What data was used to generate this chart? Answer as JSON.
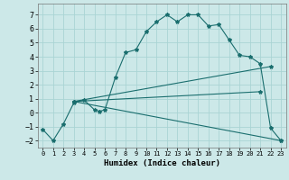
{
  "title": "",
  "xlabel": "Humidex (Indice chaleur)",
  "xlim": [
    -0.5,
    23.5
  ],
  "ylim": [
    -2.5,
    7.8
  ],
  "yticks": [
    -2,
    -1,
    0,
    1,
    2,
    3,
    4,
    5,
    6,
    7
  ],
  "xticks": [
    0,
    1,
    2,
    3,
    4,
    5,
    6,
    7,
    8,
    9,
    10,
    11,
    12,
    13,
    14,
    15,
    16,
    17,
    18,
    19,
    20,
    21,
    22,
    23
  ],
  "bg_color": "#cce8e8",
  "grid_color": "#aad4d4",
  "line_color": "#1a6e6e",
  "line1_x": [
    0,
    1,
    2,
    3,
    4,
    5,
    5.5,
    6,
    7,
    8,
    9,
    10,
    11,
    12,
    13,
    14,
    15,
    16,
    17,
    18,
    19,
    20,
    21,
    22,
    23
  ],
  "line1_y": [
    -1.2,
    -2.0,
    -0.8,
    0.7,
    0.9,
    0.2,
    0.1,
    0.2,
    2.5,
    4.3,
    4.5,
    5.8,
    6.5,
    7.0,
    6.5,
    7.0,
    7.0,
    6.2,
    6.3,
    5.2,
    4.1,
    4.0,
    3.5,
    -1.1,
    -2.0
  ],
  "line2_x": [
    3,
    22
  ],
  "line2_y": [
    0.8,
    3.3
  ],
  "line3_x": [
    3,
    23
  ],
  "line3_y": [
    0.8,
    -2.0
  ],
  "line4_x": [
    3,
    21
  ],
  "line4_y": [
    0.8,
    1.5
  ]
}
